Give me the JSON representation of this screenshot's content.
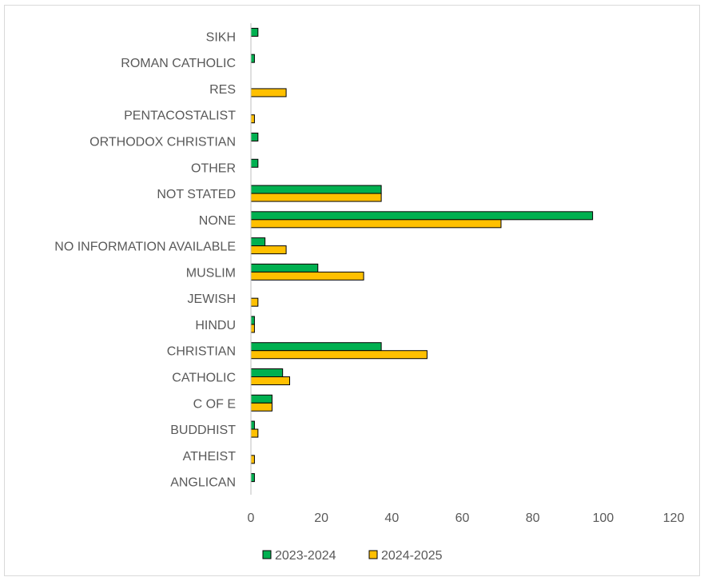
{
  "chart_data": {
    "type": "bar",
    "orientation": "horizontal",
    "title": "",
    "xlabel": "",
    "ylabel": "",
    "xlim": [
      0,
      120
    ],
    "xticks": [
      0,
      20,
      40,
      60,
      80,
      100,
      120
    ],
    "grid": false,
    "legend_position": "bottom",
    "categories": [
      "SIKH",
      "ROMAN CATHOLIC",
      "RES",
      "PENTACOSTALIST",
      "ORTHODOX CHRISTIAN",
      "OTHER",
      "NOT STATED",
      "NONE",
      "NO INFORMATION AVAILABLE",
      "MUSLIM",
      "JEWISH",
      "HINDU",
      "CHRISTIAN",
      "CATHOLIC",
      "C OF E",
      "BUDDHIST",
      "ATHEIST",
      "ANGLICAN"
    ],
    "series": [
      {
        "name": "2023-2024",
        "color": "#00b050",
        "values": [
          2,
          1,
          0,
          0,
          2,
          2,
          37,
          97,
          4,
          19,
          0,
          1,
          37,
          9,
          6,
          1,
          0,
          1
        ]
      },
      {
        "name": "2024-2025",
        "color": "#ffc000",
        "values": [
          0,
          0,
          10,
          1,
          0,
          0,
          37,
          71,
          10,
          32,
          2,
          1,
          50,
          11,
          6,
          2,
          1,
          0
        ]
      }
    ]
  }
}
